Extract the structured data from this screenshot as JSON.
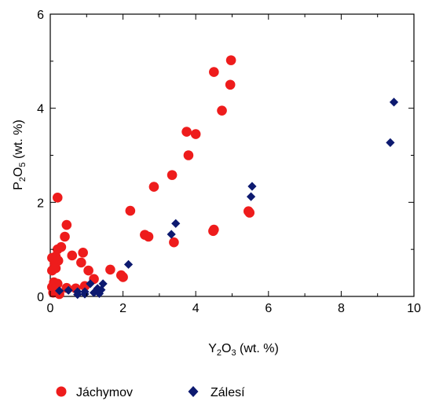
{
  "chart_data": {
    "type": "scatter",
    "title": "",
    "xlabel": {
      "base": "Y",
      "sub1": "2",
      "mid": "O",
      "sub2": "3",
      "tail": " (wt. %)"
    },
    "ylabel": {
      "base": "P",
      "sub1": "2",
      "mid": "O",
      "sub2": "5",
      "tail": " (wt. %)"
    },
    "xlim": [
      0,
      10
    ],
    "ylim": [
      0,
      6
    ],
    "xticks": [
      0,
      2,
      4,
      6,
      8,
      10
    ],
    "yticks": [
      0,
      2,
      4,
      6
    ],
    "grid": false,
    "legend_position": "bottom",
    "series": [
      {
        "name": "Jáchymov",
        "marker": "circle",
        "color": "#ee1c1c",
        "points": [
          [
            4.97,
            5.02
          ],
          [
            4.5,
            4.77
          ],
          [
            4.95,
            4.5
          ],
          [
            4.72,
            3.95
          ],
          [
            3.75,
            3.5
          ],
          [
            4.0,
            3.45
          ],
          [
            3.8,
            3.0
          ],
          [
            3.35,
            2.58
          ],
          [
            2.85,
            2.33
          ],
          [
            2.2,
            1.82
          ],
          [
            5.45,
            1.81
          ],
          [
            5.48,
            1.78
          ],
          [
            4.5,
            1.42
          ],
          [
            4.48,
            1.39
          ],
          [
            2.6,
            1.31
          ],
          [
            2.7,
            1.27
          ],
          [
            3.4,
            1.15
          ],
          [
            0.2,
            2.1
          ],
          [
            0.45,
            1.52
          ],
          [
            0.4,
            1.27
          ],
          [
            0.3,
            1.05
          ],
          [
            0.2,
            1.0
          ],
          [
            0.15,
            0.85
          ],
          [
            0.05,
            0.82
          ],
          [
            0.22,
            0.76
          ],
          [
            0.12,
            0.7
          ],
          [
            0.6,
            0.87
          ],
          [
            0.9,
            0.93
          ],
          [
            0.85,
            0.72
          ],
          [
            0.05,
            0.55
          ],
          [
            0.15,
            0.6
          ],
          [
            1.05,
            0.55
          ],
          [
            1.65,
            0.57
          ],
          [
            1.95,
            0.45
          ],
          [
            2.0,
            0.41
          ],
          [
            1.2,
            0.37
          ],
          [
            0.1,
            0.3
          ],
          [
            0.2,
            0.27
          ],
          [
            0.05,
            0.2
          ],
          [
            0.15,
            0.17
          ],
          [
            0.45,
            0.18
          ],
          [
            0.7,
            0.17
          ],
          [
            0.95,
            0.22
          ],
          [
            0.08,
            0.08
          ],
          [
            0.25,
            0.05
          ]
        ]
      },
      {
        "name": "Zálesí",
        "marker": "diamond",
        "color": "#0d1a70",
        "points": [
          [
            9.45,
            4.13
          ],
          [
            9.35,
            3.27
          ],
          [
            5.55,
            2.34
          ],
          [
            5.52,
            2.12
          ],
          [
            3.45,
            1.55
          ],
          [
            3.33,
            1.32
          ],
          [
            2.15,
            0.68
          ],
          [
            1.45,
            0.27
          ],
          [
            1.1,
            0.27
          ],
          [
            1.3,
            0.17
          ],
          [
            1.4,
            0.14
          ],
          [
            0.25,
            0.12
          ],
          [
            0.5,
            0.13
          ],
          [
            0.75,
            0.1
          ],
          [
            0.95,
            0.1
          ],
          [
            1.2,
            0.08
          ],
          [
            1.35,
            0.06
          ],
          [
            0.75,
            0.04
          ],
          [
            0.95,
            0.05
          ]
        ]
      }
    ]
  }
}
